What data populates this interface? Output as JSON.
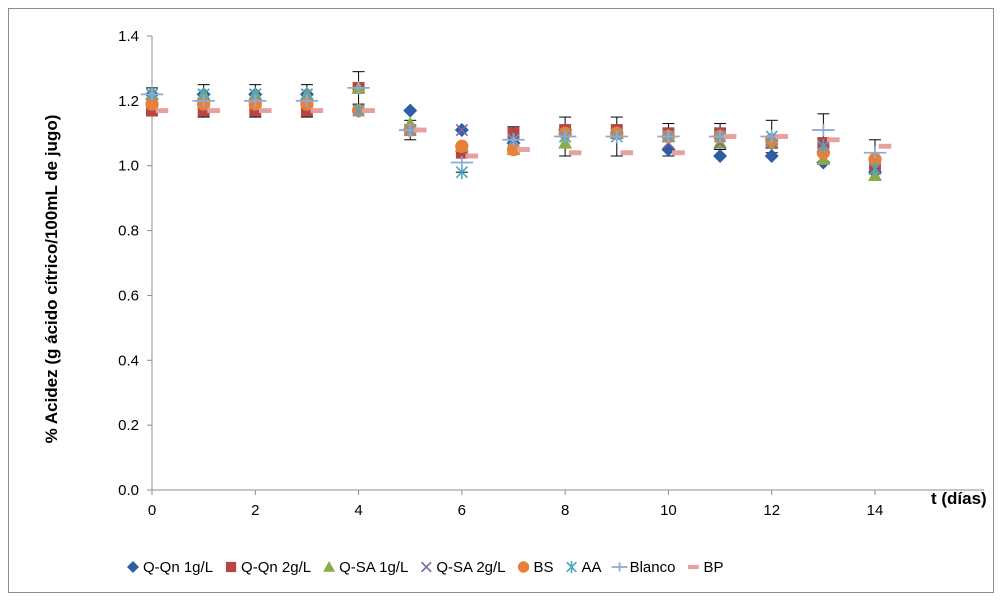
{
  "chart_data": {
    "type": "scatter",
    "title": "",
    "xlabel": "t (días)",
    "ylabel": "% Acidez (g ácido cítrico/100mL  de jugo)",
    "xlim": [
      0,
      14
    ],
    "ylim": [
      0,
      1.4
    ],
    "xticks": [
      "0",
      "2",
      "4",
      "6",
      "8",
      "10",
      "12",
      "14"
    ],
    "yticks": [
      "0.0",
      "0.2",
      "0.4",
      "0.6",
      "0.8",
      "1.0",
      "1.2",
      "1.4"
    ],
    "grid": false,
    "legend_position": "bottom",
    "error_bars": true,
    "x": [
      0,
      1,
      2,
      3,
      4,
      5,
      6,
      7,
      8,
      9,
      10,
      11,
      12,
      13,
      14
    ],
    "series": [
      {
        "name": "Q-Qn 1g/L",
        "marker": "diamond",
        "color": "#2e5da6",
        "values": [
          1.22,
          1.22,
          1.22,
          1.22,
          1.24,
          1.17,
          1.11,
          1.07,
          1.11,
          1.1,
          1.05,
          1.03,
          1.03,
          1.01,
          0.98
        ]
      },
      {
        "name": "Q-Qn 2g/L",
        "marker": "square",
        "color": "#b84542",
        "values": [
          1.17,
          1.17,
          1.17,
          1.17,
          1.24,
          1.11,
          1.04,
          1.1,
          1.11,
          1.11,
          1.1,
          1.1,
          1.07,
          1.07,
          1.0
        ]
      },
      {
        "name": "Q-SA 1g/L",
        "marker": "triangle",
        "color": "#8aac48",
        "values": [
          1.22,
          1.22,
          1.22,
          1.22,
          1.24,
          1.13,
          1.06,
          1.05,
          1.07,
          1.1,
          1.09,
          1.07,
          1.07,
          1.02,
          0.97
        ]
      },
      {
        "name": "Q-SA 2g/L",
        "marker": "x",
        "color": "#7a64a3",
        "values": [
          1.22,
          1.22,
          1.22,
          1.22,
          1.17,
          1.11,
          1.11,
          1.07,
          1.09,
          1.1,
          1.07,
          1.07,
          1.07,
          1.05,
          0.99
        ]
      },
      {
        "name": "BS",
        "marker": "circle",
        "color": "#e8803c",
        "values": [
          1.19,
          1.19,
          1.19,
          1.19,
          1.17,
          1.11,
          1.06,
          1.05,
          1.1,
          1.1,
          1.09,
          1.09,
          1.08,
          1.04,
          1.02
        ]
      },
      {
        "name": "AA",
        "marker": "asterisk",
        "color": "#4aa8c4",
        "values": [
          1.22,
          1.22,
          1.22,
          1.22,
          1.17,
          1.11,
          0.98,
          1.08,
          1.09,
          1.09,
          1.09,
          1.09,
          1.09,
          1.06,
          0.99
        ]
      },
      {
        "name": "Blanco",
        "marker": "plus",
        "color": "#8eaad8",
        "values": [
          1.22,
          1.2,
          1.2,
          1.2,
          1.24,
          1.11,
          1.01,
          1.08,
          1.09,
          1.09,
          1.09,
          1.09,
          1.09,
          1.11,
          1.04
        ]
      },
      {
        "name": "BP",
        "marker": "dash",
        "color": "#e5a19f",
        "values": [
          1.17,
          1.17,
          1.17,
          1.17,
          1.17,
          1.11,
          1.03,
          1.05,
          1.04,
          1.04,
          1.04,
          1.09,
          1.09,
          1.08,
          1.06
        ]
      }
    ],
    "error": [
      0.04,
      0.05,
      0.05,
      0.05,
      0.05,
      0.03,
      0.04,
      0.04,
      0.06,
      0.06,
      0.05,
      0.04,
      0.05,
      0.05,
      0.05
    ],
    "error_bar_means": [
      1.2,
      1.2,
      1.2,
      1.2,
      1.24,
      1.11,
      1.02,
      1.08,
      1.09,
      1.09,
      1.08,
      1.09,
      1.09,
      1.11,
      1.03
    ]
  }
}
